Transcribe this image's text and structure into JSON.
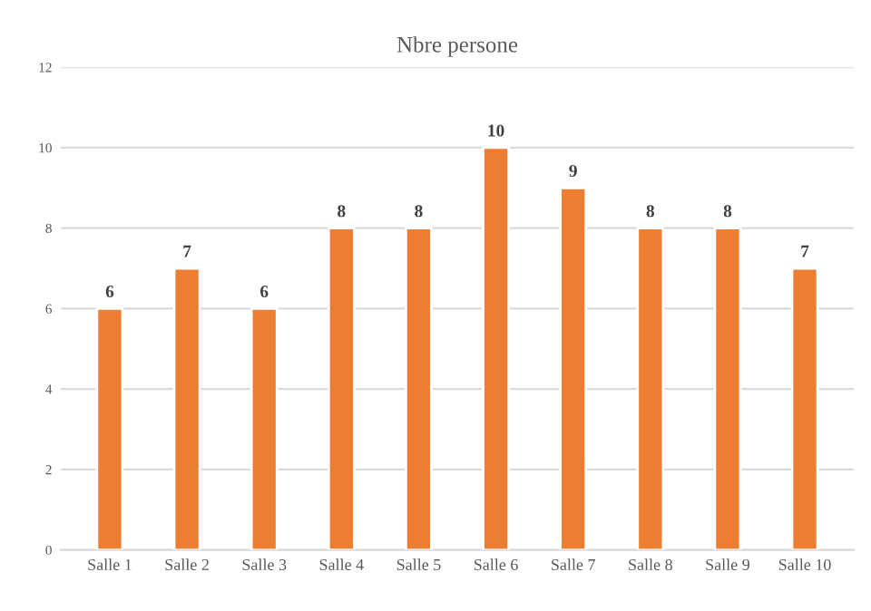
{
  "chart_data": {
    "type": "bar",
    "title": "Nbre persone",
    "categories": [
      "Salle 1",
      "Salle 2",
      "Salle 3",
      "Salle 4",
      "Salle 5",
      "Salle 6",
      "Salle 7",
      "Salle 8",
      "Salle 9",
      "Salle 10"
    ],
    "values": [
      6,
      7,
      6,
      8,
      8,
      10,
      9,
      8,
      8,
      7
    ],
    "color": "#ed7d31",
    "ylim": [
      0,
      12
    ],
    "yticks": [
      0,
      2,
      4,
      6,
      8,
      10,
      12
    ],
    "grid": "y",
    "data_labels": true
  }
}
